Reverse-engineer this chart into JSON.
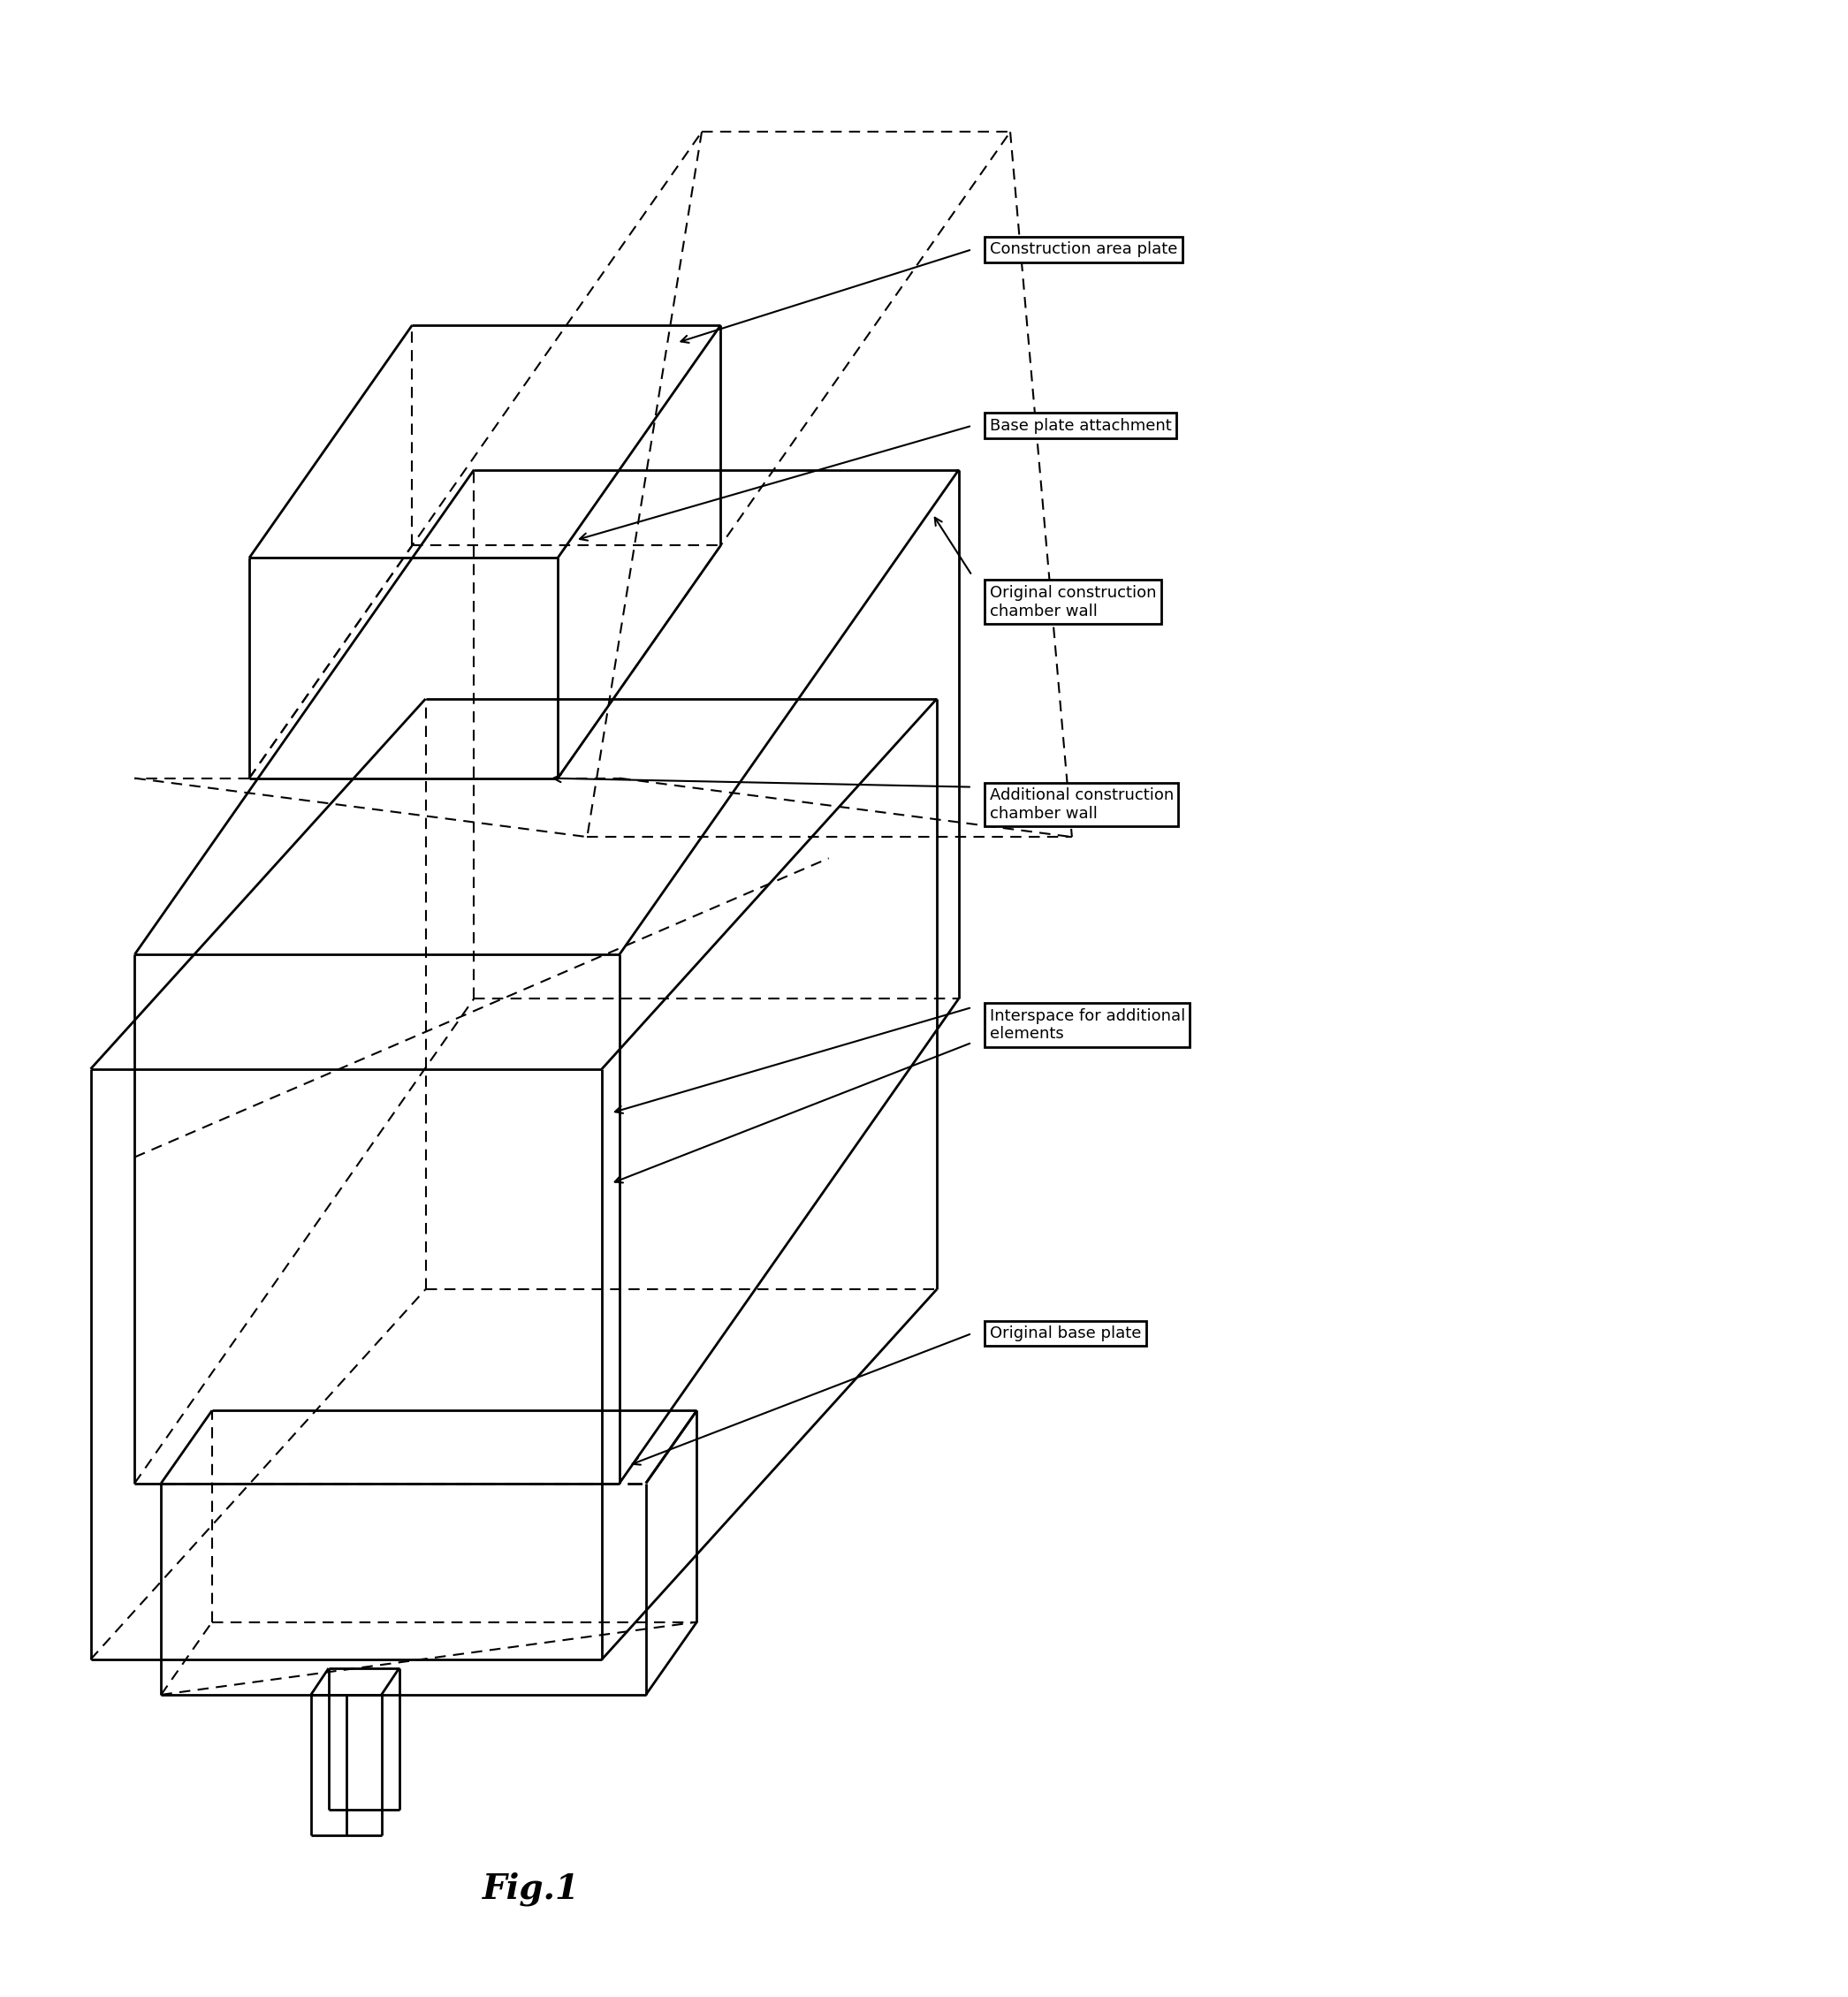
{
  "fig_label": "Fig.1",
  "labels": [
    "Construction area plate",
    "Base plate attachment",
    "Original construction\nchamber wall",
    "Additional construction\nchamber wall",
    "Interspace for additional\nelements",
    "Original base plate"
  ],
  "background": "#ffffff",
  "line_color": "#000000",
  "lw": 2.0,
  "lw_thin": 1.5
}
